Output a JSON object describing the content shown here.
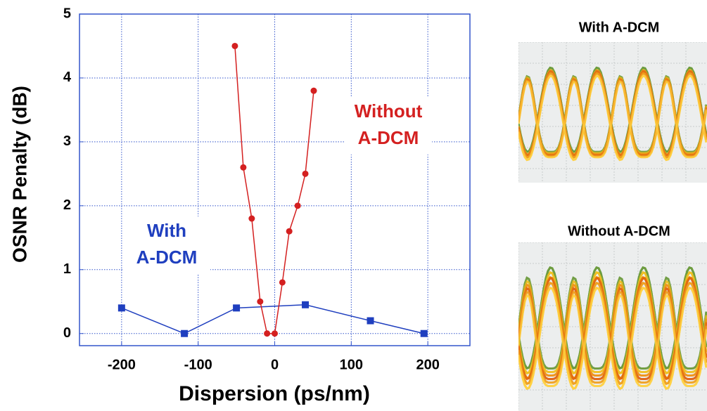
{
  "chart_data": {
    "type": "line",
    "xlabel": "Dispersion (ps/nm)",
    "ylabel": "OSNR Penalty (dB)",
    "series": [
      {
        "name": "With A-DCM",
        "color": "#1f3fbf",
        "marker": "square",
        "x": [
          -200,
          -118,
          -50,
          40,
          125,
          195
        ],
        "values": [
          0.4,
          0,
          0.4,
          0.45,
          0.2,
          0
        ]
      },
      {
        "name": "Without A-DCM",
        "color": "#d42020",
        "marker": "circle",
        "x": [
          -52,
          -41,
          -30,
          -19,
          -10,
          0,
          10,
          19,
          30,
          40,
          51
        ],
        "values": [
          4.5,
          2.6,
          1.8,
          0.5,
          0,
          0,
          0.8,
          1.6,
          2.0,
          2.5,
          3.8
        ]
      }
    ],
    "annotations": [
      [
        "With",
        "A-DCM"
      ],
      [
        "Without",
        "A-DCM"
      ]
    ],
    "xlim": [
      -255,
      255
    ],
    "xticks": [
      -200,
      -100,
      0,
      100,
      200
    ],
    "ylim": [
      -0.19,
      5
    ],
    "yticks": [
      0,
      1,
      2,
      3,
      4,
      5
    ],
    "grid": true
  },
  "panels": [
    "With A-DCM",
    "Without A-DCM"
  ]
}
